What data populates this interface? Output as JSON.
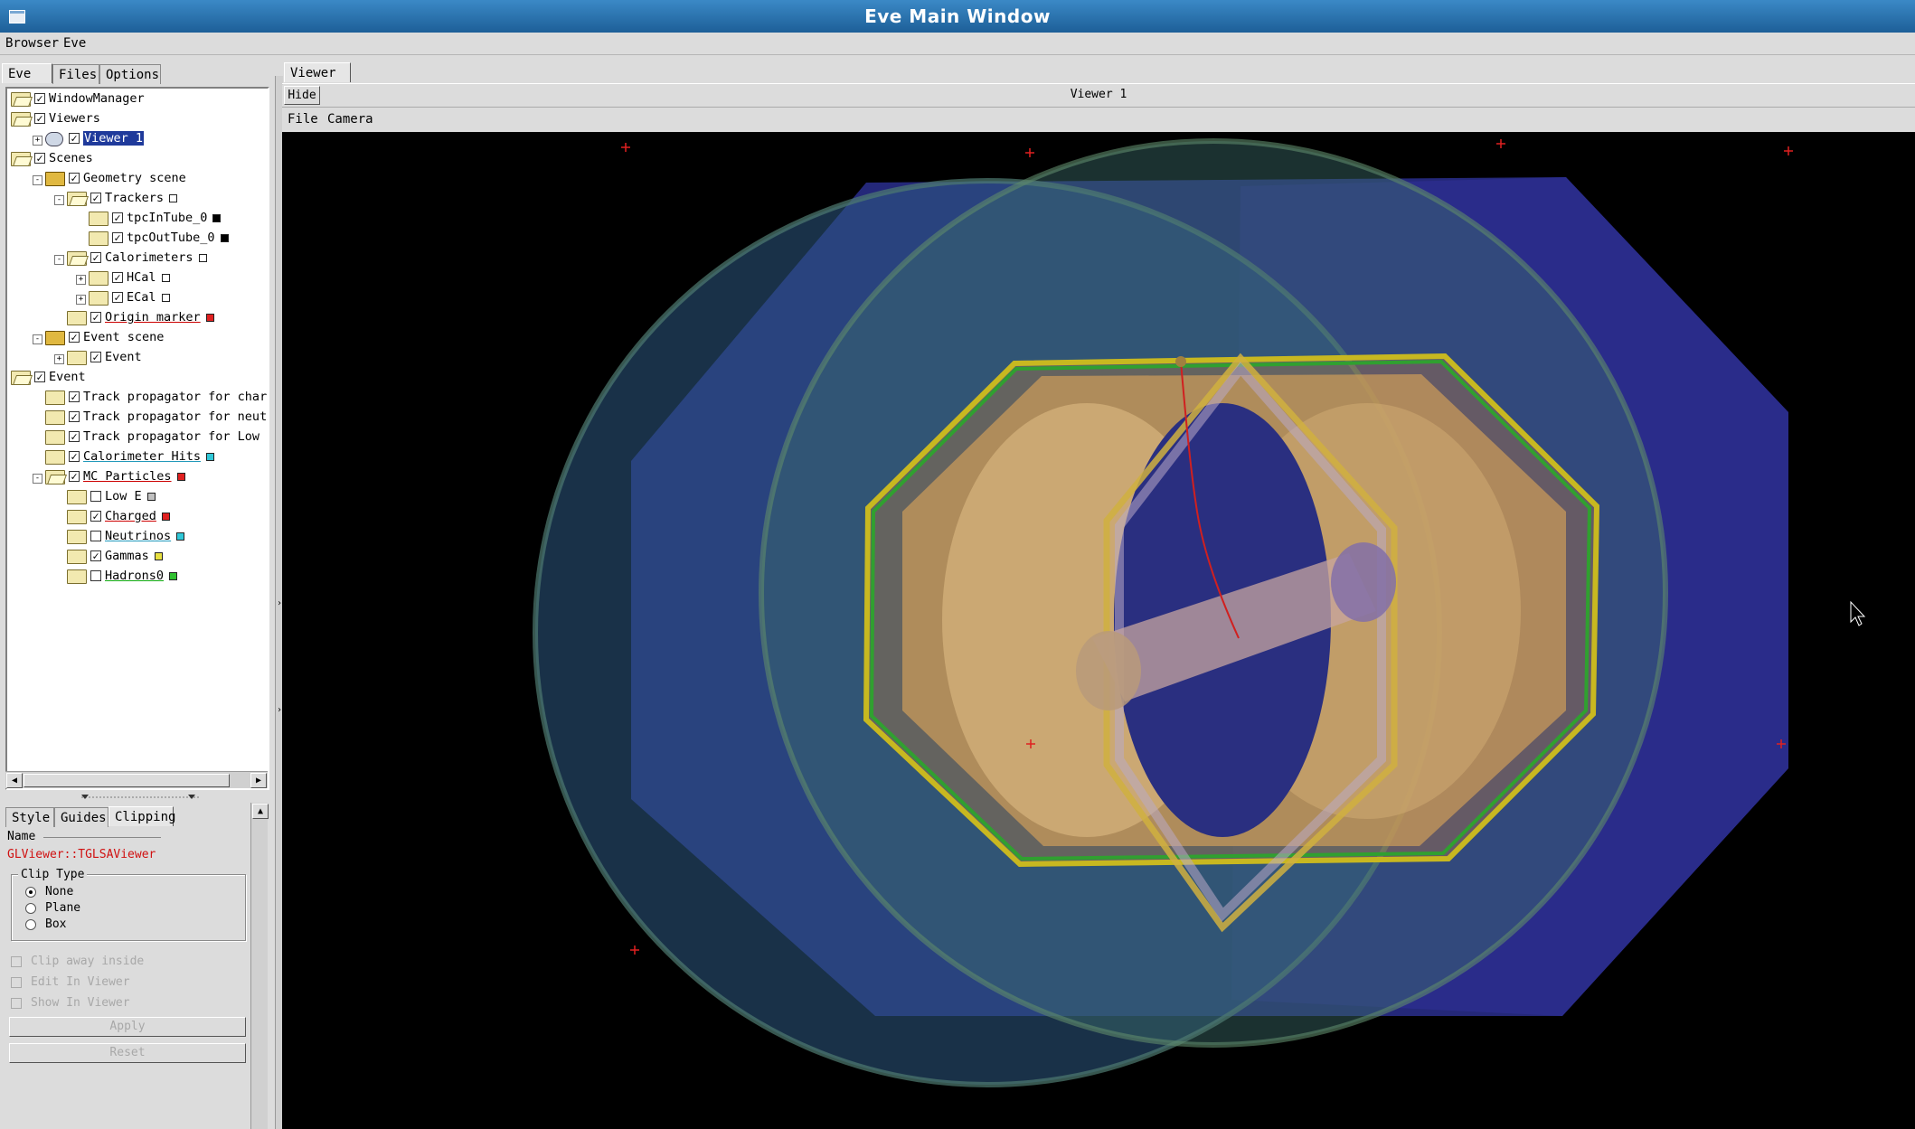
{
  "window": {
    "title": "Eve Main Window"
  },
  "menubar": {
    "items": [
      "Browser",
      "Eve"
    ]
  },
  "left_tabs": [
    "Eve",
    "Files",
    "Options"
  ],
  "tree": [
    {
      "label": "WindowManager",
      "level": 0,
      "expander": "",
      "icon": "folder-open",
      "checked": true,
      "color": null,
      "style": ""
    },
    {
      "label": "Viewers",
      "level": 0,
      "expander": "",
      "icon": "folder-open",
      "checked": true,
      "color": null,
      "style": ""
    },
    {
      "label": "Viewer 1",
      "level": 1,
      "expander": "+",
      "icon": "viewer",
      "checked": true,
      "color": null,
      "style": "sel"
    },
    {
      "label": "Scenes",
      "level": 0,
      "expander": "",
      "icon": "folder-open",
      "checked": true,
      "color": null,
      "style": ""
    },
    {
      "label": "Geometry scene",
      "level": 1,
      "expander": "-",
      "icon": "scene",
      "checked": true,
      "color": null,
      "style": ""
    },
    {
      "label": "Trackers",
      "level": 2,
      "expander": "-",
      "icon": "folder-open",
      "checked": true,
      "color": "#ffffff",
      "style": ""
    },
    {
      "label": "tpcInTube_0",
      "level": 3,
      "expander": "",
      "icon": "folder",
      "checked": true,
      "color": "#000000",
      "style": ""
    },
    {
      "label": "tpcOutTube_0",
      "level": 3,
      "expander": "",
      "icon": "folder",
      "checked": true,
      "color": "#000000",
      "style": ""
    },
    {
      "label": "Calorimeters",
      "level": 2,
      "expander": "-",
      "icon": "folder-open",
      "checked": true,
      "color": "#ffffff",
      "style": ""
    },
    {
      "label": "HCal",
      "level": 3,
      "expander": "+",
      "icon": "folder",
      "checked": true,
      "color": "#ffffff",
      "style": ""
    },
    {
      "label": "ECal",
      "level": 3,
      "expander": "+",
      "icon": "folder",
      "checked": true,
      "color": "#ffffff",
      "style": ""
    },
    {
      "label": "Origin marker",
      "level": 2,
      "expander": "",
      "icon": "folder",
      "checked": true,
      "color": "#e02020",
      "style": "red"
    },
    {
      "label": "Event scene",
      "level": 1,
      "expander": "-",
      "icon": "scene",
      "checked": true,
      "color": null,
      "style": ""
    },
    {
      "label": "Event",
      "level": 2,
      "expander": "+",
      "icon": "folder",
      "checked": true,
      "color": null,
      "style": ""
    },
    {
      "label": "Event",
      "level": 0,
      "expander": "",
      "icon": "folder-open",
      "checked": true,
      "color": null,
      "style": ""
    },
    {
      "label": "Track propagator for charged pa",
      "level": 1,
      "expander": "",
      "icon": "folder",
      "checked": true,
      "color": null,
      "style": ""
    },
    {
      "label": "Track propagator for neutral pa",
      "level": 1,
      "expander": "",
      "icon": "folder",
      "checked": true,
      "color": null,
      "style": ""
    },
    {
      "label": "Track propagator for Low E part",
      "level": 1,
      "expander": "",
      "icon": "folder",
      "checked": true,
      "color": null,
      "style": ""
    },
    {
      "label": "Calorimeter Hits",
      "level": 1,
      "expander": "",
      "icon": "folder",
      "checked": true,
      "color": "#30c8d8",
      "style": "blu"
    },
    {
      "label": "MC Particles",
      "level": 1,
      "expander": "-",
      "icon": "folder-open",
      "checked": true,
      "color": "#e02020",
      "style": "red"
    },
    {
      "label": "Low E",
      "level": 2,
      "expander": "",
      "icon": "folder",
      "checked": false,
      "color": "#c0c0c0",
      "style": ""
    },
    {
      "label": "Charged",
      "level": 2,
      "expander": "",
      "icon": "folder",
      "checked": true,
      "color": "#e02020",
      "style": "red"
    },
    {
      "label": "Neutrinos",
      "level": 2,
      "expander": "",
      "icon": "folder",
      "checked": false,
      "color": "#30c8d8",
      "style": "blu"
    },
    {
      "label": "Gammas",
      "level": 2,
      "expander": "",
      "icon": "folder",
      "checked": true,
      "color": "#e8e040",
      "style": ""
    },
    {
      "label": "Hadrons0",
      "level": 2,
      "expander": "",
      "icon": "folder",
      "checked": false,
      "color": "#30c030",
      "style": "grn"
    }
  ],
  "editor": {
    "tabs": [
      "Style",
      "Guides",
      "Clipping"
    ],
    "name_label": "Name",
    "object_name": "GLViewer::TGLSAViewer",
    "clip_type_label": "Clip Type",
    "clip_options": [
      {
        "label": "None",
        "selected": true
      },
      {
        "label": "Plane",
        "selected": false
      },
      {
        "label": "Box",
        "selected": false
      }
    ],
    "checkboxes": [
      "Clip away inside",
      "Edit In Viewer",
      "Show In Viewer"
    ],
    "apply_label": "Apply",
    "reset_label": "Reset"
  },
  "viewer": {
    "tab_label": "Viewer 1",
    "hide_label": "Hide",
    "title": "Viewer 1",
    "menu": [
      "File",
      "Camera"
    ]
  }
}
